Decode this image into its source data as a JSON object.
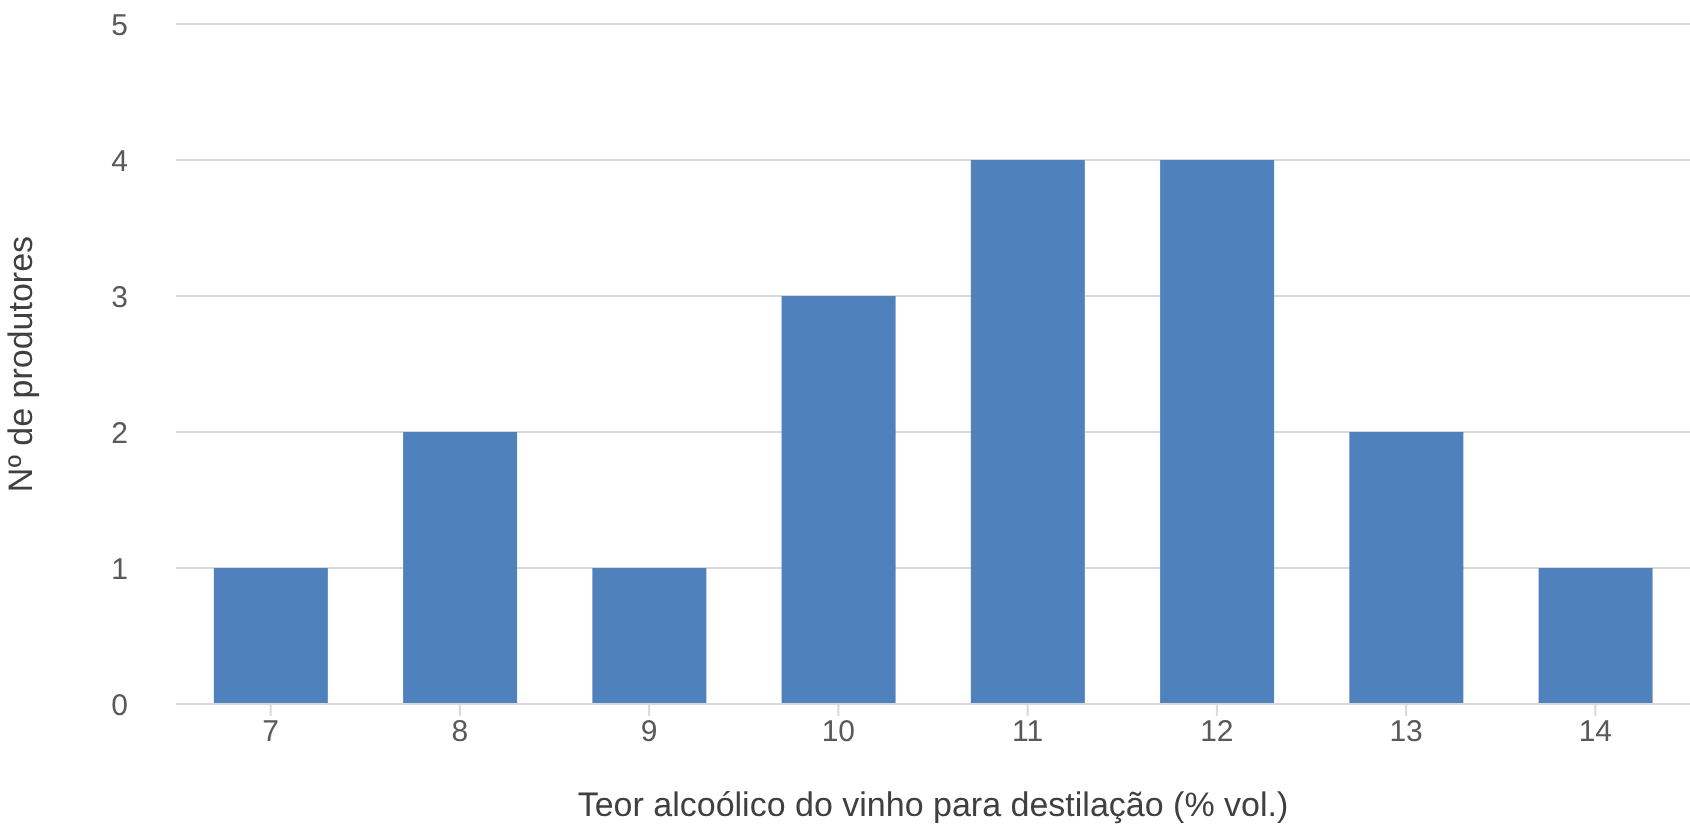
{
  "chart_data": {
    "type": "bar",
    "xlabel": "Teor alcoólico do vinho para destilação (% vol.)",
    "ylabel": "Nº de produtores",
    "categories": [
      "7",
      "8",
      "9",
      "10",
      "11",
      "12",
      "13",
      "14"
    ],
    "values": [
      1,
      2,
      1,
      3,
      4,
      4,
      2,
      1
    ],
    "color": "#4f81bd",
    "ylim": [
      0,
      5
    ],
    "yticks": [
      0,
      1,
      2,
      3,
      4,
      5
    ],
    "grid": "y"
  }
}
